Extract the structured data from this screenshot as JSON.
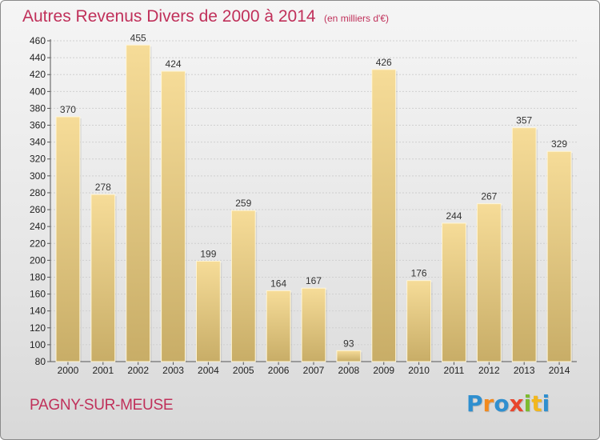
{
  "chart_data": {
    "type": "bar",
    "title": "Autres Revenus Divers de 2000 à 2014",
    "subtitle": "(en milliers d'€)",
    "categories": [
      "2000",
      "2001",
      "2002",
      "2003",
      "2004",
      "2005",
      "2006",
      "2007",
      "2008",
      "2009",
      "2010",
      "2011",
      "2012",
      "2013",
      "2014"
    ],
    "values": [
      370,
      278,
      455,
      424,
      199,
      259,
      164,
      167,
      93,
      426,
      176,
      244,
      267,
      357,
      329
    ],
    "ylim": [
      80,
      460
    ],
    "yticks": [
      80,
      100,
      120,
      140,
      160,
      180,
      200,
      220,
      240,
      260,
      280,
      300,
      320,
      340,
      360,
      380,
      400,
      420,
      440,
      460
    ],
    "grid": true,
    "legend": "none",
    "colors": {
      "bar_top": "#f6dc98",
      "bar_bottom": "#c8ad67",
      "title": "#c0305a"
    }
  },
  "footer": {
    "commune": "PAGNY-SUR-MEUSE",
    "logo_letters": [
      "P",
      "r",
      "o",
      "x",
      "i",
      "t",
      "i"
    ],
    "logo_colors": [
      "#2f8fcf",
      "#f28a1e",
      "#2f8fcf",
      "#e8462d",
      "#7dbb2f",
      "#f2b71e",
      "#2f8fcf"
    ]
  }
}
